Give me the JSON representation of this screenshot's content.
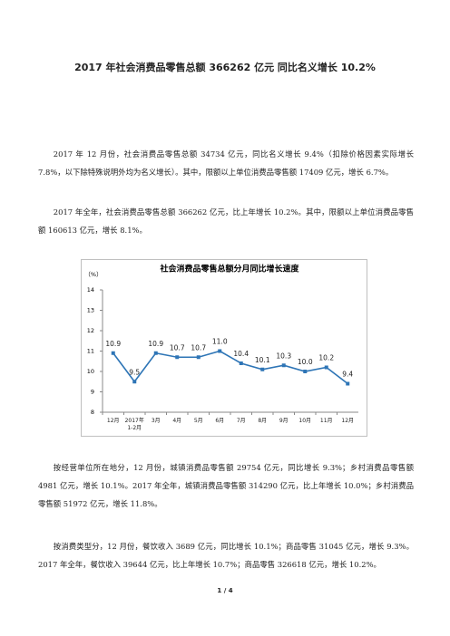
{
  "document": {
    "title": "2017 年社会消费品零售总额 366262 亿元 同比名义增长 10.2%",
    "paragraphs": [
      "2017 年 12 月份，社会消费品零售总额 34734 亿元，同比名义增长 9.4%（扣除价格因素实际增长 7.8%，以下除特殊说明外均为名义增长）。其中，限额以上单位消费品零售额 17409 亿元，增长 6.7%。",
      "2017 年全年，社会消费品零售总额 366262 亿元，比上年增长 10.2%。其中，限额以上单位消费品零售额 160613 亿元，增长 8.1%。"
    ],
    "paragraphs_after": [
      "按经营单位所在地分，12 月份，城镇消费品零售额 29754 亿元，同比增长 9.3%；乡村消费品零售额 4981 亿元，增长 10.1%。2017 年全年，城镇消费品零售额 314290 亿元，比上年增长 10.0%；乡村消费品零售额 51972 亿元，增长 11.8%。",
      "按消费类型分，12 月份，餐饮收入 3689 亿元，同比增长 10.1%；商品零售 31045 亿元，增长 9.3%。2017 年全年，餐饮收入 39644 亿元，比上年增长 10.7%；商品零售 326618 亿元，增长 10.2%。"
    ],
    "footer": "1 / 4"
  },
  "chart_data": {
    "type": "line",
    "title": "社会消费品零售总额分月同比增长速度",
    "y_label": "（%）",
    "categories": [
      "12月",
      "2017年 1-2月",
      "3月",
      "4月",
      "5月",
      "6月",
      "7月",
      "8月",
      "9月",
      "10月",
      "11月",
      "12月"
    ],
    "values": [
      10.9,
      9.5,
      10.9,
      10.7,
      10.7,
      11.0,
      10.4,
      10.1,
      10.3,
      10.0,
      10.2,
      9.4
    ],
    "value_labels": [
      "10.9",
      "9.5",
      "10.9",
      "10.7",
      "10.7",
      "11.0",
      "10.4",
      "10.1",
      "10.3",
      "10.0",
      "10.2",
      "9.4"
    ],
    "color": "#2e75b6",
    "ylim": [
      8,
      14
    ],
    "yticks": [
      8,
      9,
      10,
      11,
      12,
      13,
      14
    ],
    "grid": false
  }
}
